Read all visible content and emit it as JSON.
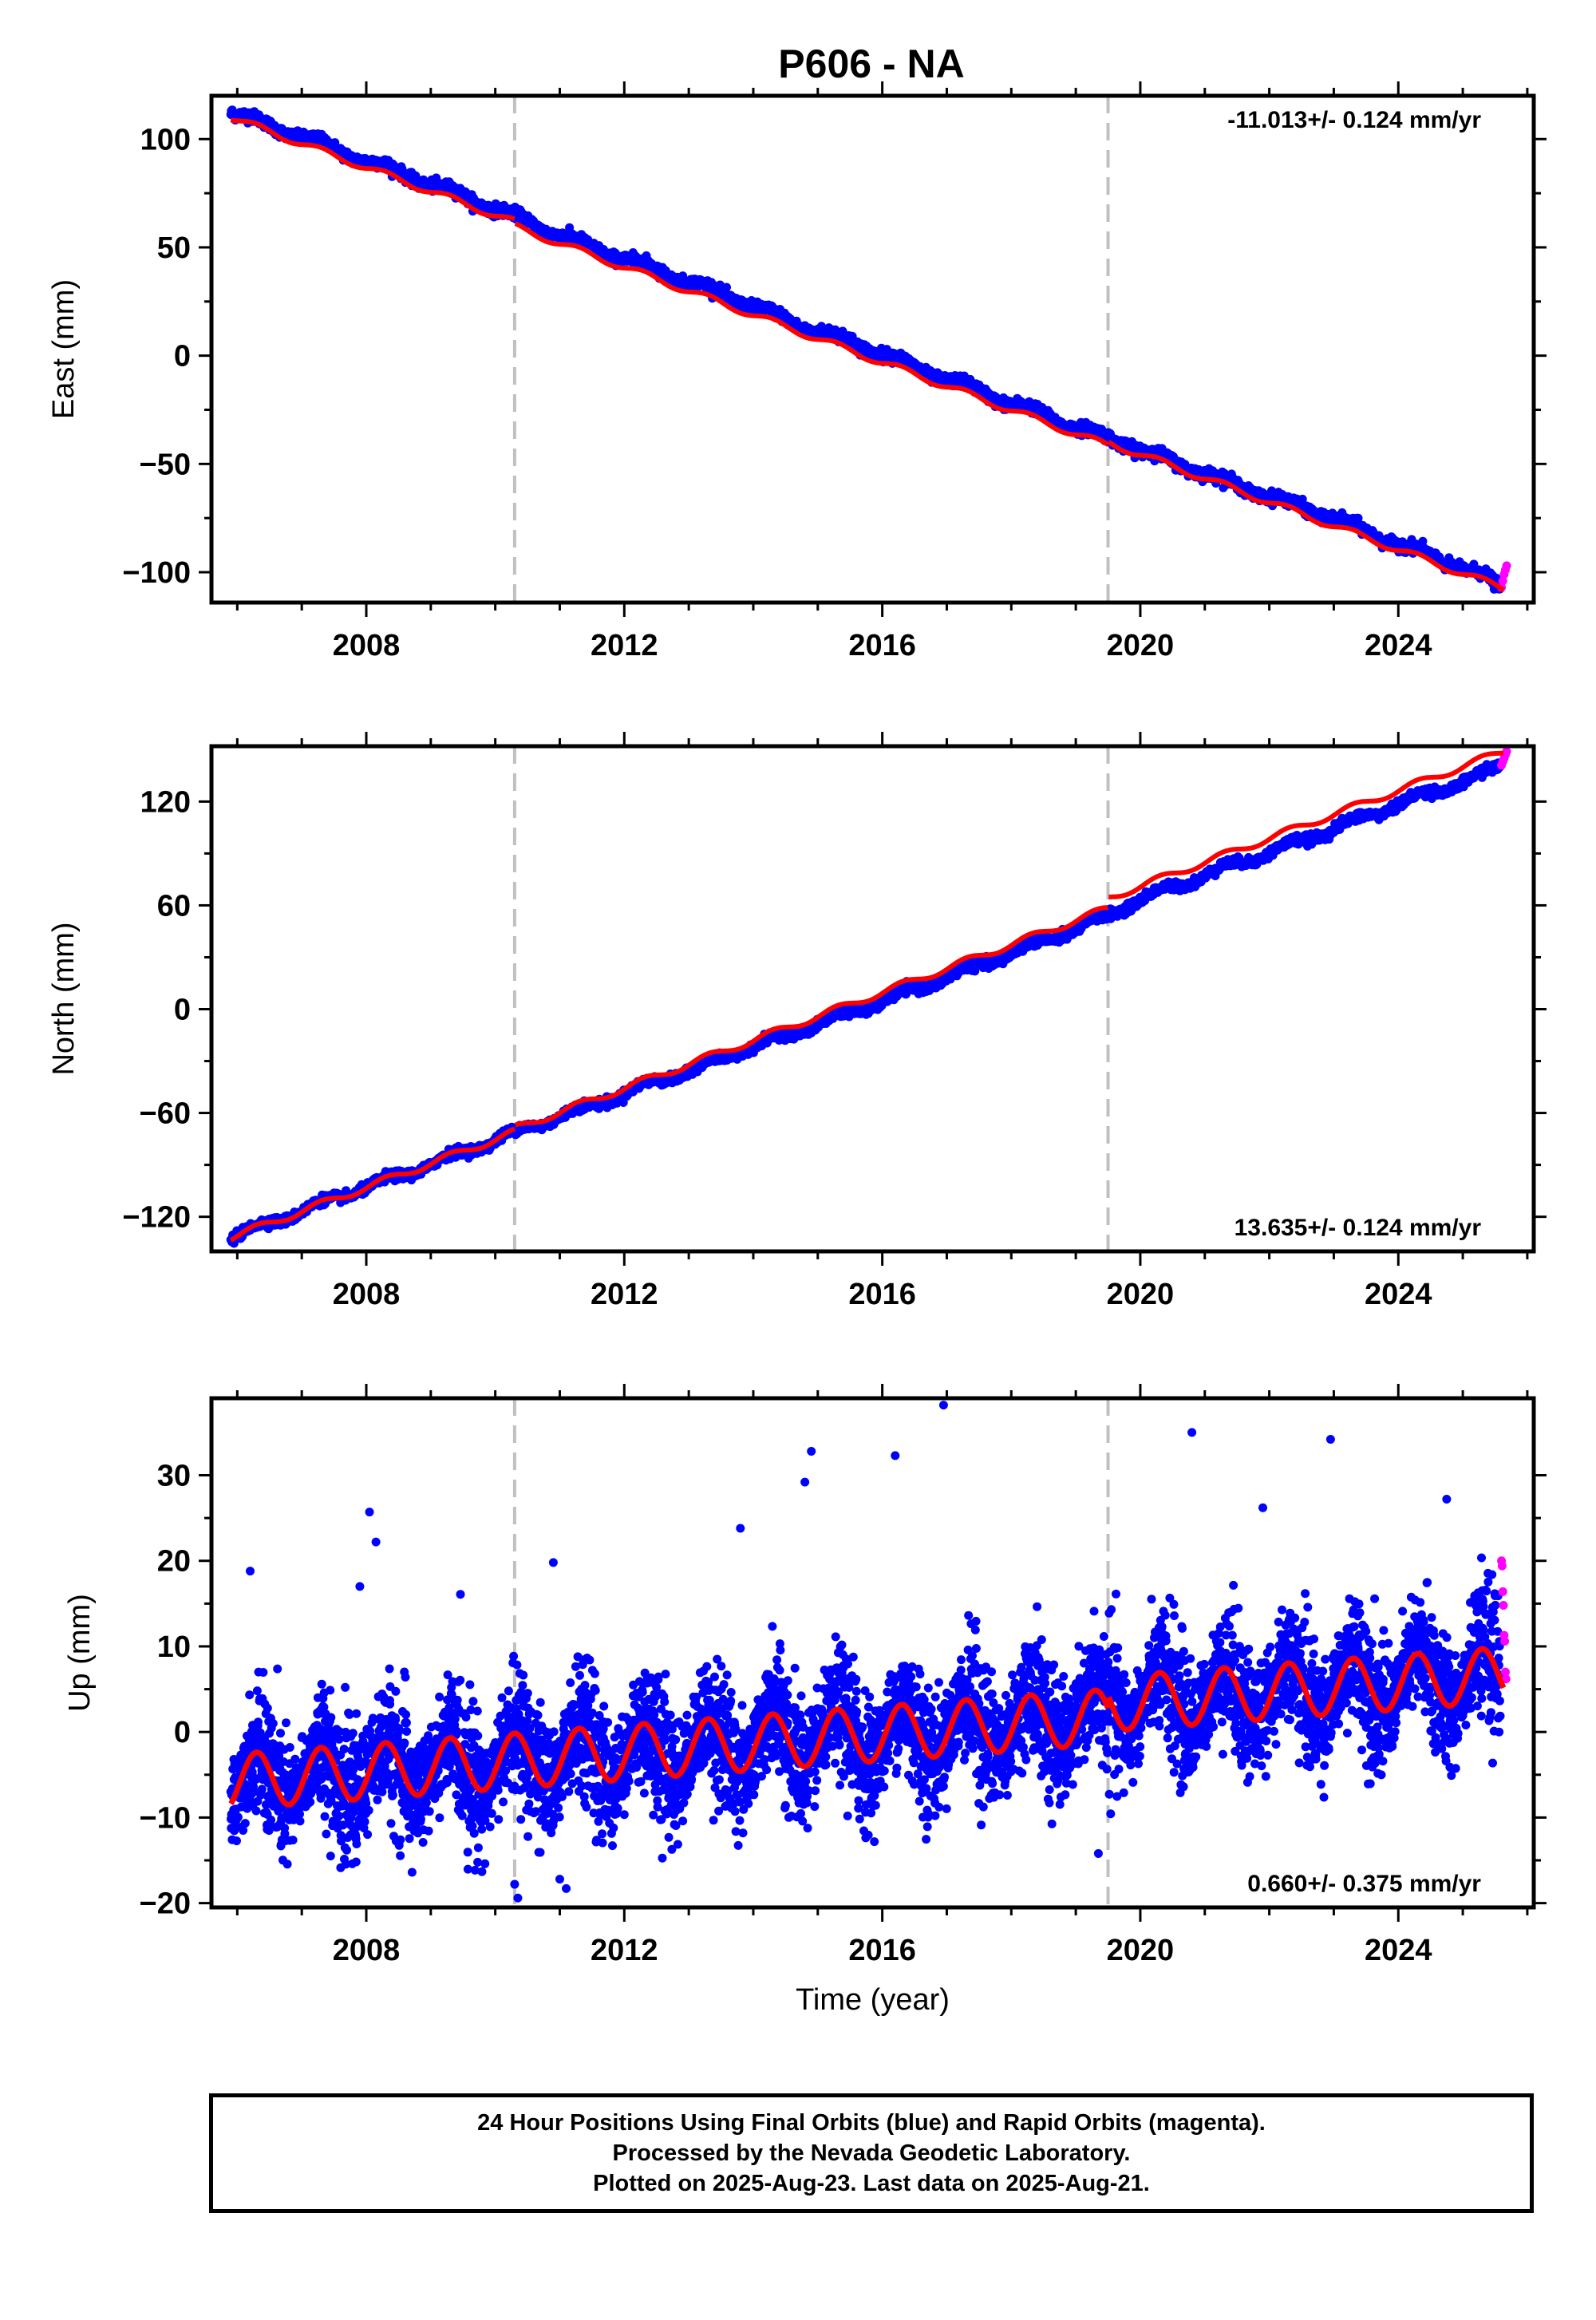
{
  "title": "P606 - NA",
  "colors": {
    "final_orbits": "#0000ff",
    "rapid_orbits": "#ff00ff",
    "model_fit": "#ff0000",
    "reference_lines": "#c0c0c0",
    "axis": "#000000"
  },
  "chart_data": [
    {
      "type": "scatter",
      "panel": "east",
      "title": "",
      "xlabel": "",
      "ylabel": "East (mm)",
      "xlim": [
        2005.6,
        2026.1
      ],
      "ylim": [
        -114,
        120
      ],
      "xticks": [
        2008,
        2012,
        2016,
        2020,
        2024
      ],
      "yticks": [
        -100,
        -50,
        0,
        50,
        100
      ],
      "rate_label": "-11.013+/- 0.124 mm/yr",
      "rate_label_position": "top-right",
      "grid": false,
      "reference_lines_x": [
        2010.3,
        2019.5
      ],
      "series": [
        {
          "kind": "final_orbits_daily_positions",
          "x": [
            2005.9,
            2006.4,
            2006.9,
            2007.4,
            2007.9,
            2008.4,
            2008.9,
            2009.4,
            2009.9,
            2010.4,
            2010.9,
            2011.4,
            2011.9,
            2012.4,
            2012.9,
            2013.4,
            2013.9,
            2014.4,
            2014.9,
            2015.4,
            2015.9,
            2016.4,
            2016.9,
            2017.4,
            2017.9,
            2018.4,
            2018.9,
            2019.4,
            2019.9,
            2020.4,
            2020.9,
            2021.4,
            2021.9,
            2022.4,
            2022.9,
            2023.4,
            2023.9,
            2024.4,
            2024.9,
            2025.4,
            2025.55
          ],
          "y": [
            113,
            107,
            102,
            97,
            91,
            86,
            80,
            75,
            69,
            63,
            57,
            51,
            46,
            41,
            35,
            30,
            24,
            18,
            12,
            8,
            2,
            -4,
            -10,
            -15,
            -21,
            -26,
            -32,
            -37,
            -42,
            -48,
            -53,
            -59,
            -64,
            -69,
            -74,
            -80,
            -86,
            -91,
            -97,
            -103,
            -107
          ]
        },
        {
          "kind": "rapid_orbits_daily_positions",
          "x": [
            2025.6,
            2025.62,
            2025.64,
            2025.66,
            2025.68
          ],
          "y": [
            -107,
            -104,
            -101,
            -99,
            -97
          ]
        },
        {
          "kind": "model_fit",
          "linear_rate_mm_per_yr": -11.013,
          "x_start": 2005.9,
          "x_end": 2025.63,
          "y_start": 110,
          "y_end": -107,
          "annual_amplitude_mm": 1.5,
          "offsets": [
            {
              "x": 2010.3,
              "dy": -2
            },
            {
              "x": 2019.5,
              "dy": 1.5
            }
          ]
        }
      ]
    },
    {
      "type": "scatter",
      "panel": "north",
      "title": "",
      "xlabel": "",
      "ylabel": "North (mm)",
      "xlim": [
        2005.6,
        2026.1
      ],
      "ylim": [
        -140,
        152
      ],
      "xticks": [
        2008,
        2012,
        2016,
        2020,
        2024
      ],
      "yticks": [
        -120,
        -60,
        0,
        60,
        120
      ],
      "rate_label": "13.635+/- 0.124 mm/yr",
      "rate_label_position": "bottom-right",
      "grid": false,
      "reference_lines_x": [
        2010.3,
        2019.5
      ],
      "series": [
        {
          "kind": "final_orbits_daily_positions",
          "x": [
            2005.9,
            2006.4,
            2006.9,
            2007.4,
            2007.9,
            2008.4,
            2008.9,
            2009.4,
            2009.9,
            2010.4,
            2010.9,
            2011.4,
            2011.9,
            2012.4,
            2012.9,
            2013.4,
            2013.9,
            2014.4,
            2014.9,
            2015.4,
            2015.9,
            2016.4,
            2016.9,
            2017.4,
            2017.9,
            2018.4,
            2018.9,
            2019.4,
            2019.9,
            2020.4,
            2020.9,
            2021.4,
            2021.9,
            2022.4,
            2022.9,
            2023.4,
            2023.9,
            2024.4,
            2024.9,
            2025.4,
            2025.55
          ],
          "y": [
            -132,
            -125,
            -118,
            -111,
            -104,
            -98,
            -91,
            -84,
            -77,
            -70,
            -63,
            -57,
            -50,
            -43,
            -37,
            -30,
            -23,
            -16,
            -10,
            -3,
            3,
            10,
            17,
            24,
            31,
            38,
            45,
            52,
            62,
            69,
            76,
            83,
            89,
            96,
            103,
            110,
            117,
            124,
            130,
            137,
            140
          ]
        },
        {
          "kind": "rapid_orbits_daily_positions",
          "x": [
            2025.6,
            2025.62,
            2025.64,
            2025.66,
            2025.68
          ],
          "y": [
            141,
            143,
            145,
            147,
            149
          ]
        },
        {
          "kind": "model_fit",
          "linear_rate_mm_per_yr": 13.635,
          "x_start": 2005.9,
          "x_end": 2025.63,
          "y_start": -132,
          "y_end": 141,
          "annual_amplitude_mm": 2,
          "offsets": [
            {
              "x": 2010.3,
              "dy": 2
            },
            {
              "x": 2019.5,
              "dy": 6
            }
          ]
        }
      ]
    },
    {
      "type": "scatter",
      "panel": "up",
      "title": "",
      "xlabel": "Time (year)",
      "ylabel": "Up (mm)",
      "xlim": [
        2005.6,
        2026.1
      ],
      "ylim": [
        -20.5,
        39
      ],
      "xticks": [
        2008,
        2012,
        2016,
        2020,
        2024
      ],
      "yticks": [
        -20,
        -10,
        0,
        10,
        20,
        30
      ],
      "rate_label": "0.660+/- 0.375 mm/yr",
      "rate_label_position": "bottom-right",
      "grid": false,
      "reference_lines_x": [
        2010.3,
        2019.5
      ],
      "series": [
        {
          "kind": "final_orbits_daily_positions",
          "scatter_std_mm": 4,
          "outliers": [
            {
              "x": 2006.2,
              "y": 18.8
            },
            {
              "x": 2007.9,
              "y": 17
            },
            {
              "x": 2008.05,
              "y": 25.7
            },
            {
              "x": 2008.15,
              "y": 22.2
            },
            {
              "x": 2010.9,
              "y": 19.8
            },
            {
              "x": 2013.8,
              "y": 23.8
            },
            {
              "x": 2014.8,
              "y": 29.2
            },
            {
              "x": 2014.9,
              "y": 32.8
            },
            {
              "x": 2016.2,
              "y": 32.3
            },
            {
              "x": 2016.95,
              "y": 38.2
            },
            {
              "x": 2020.8,
              "y": 35
            },
            {
              "x": 2021.9,
              "y": 26.2
            },
            {
              "x": 2022.95,
              "y": 34.2
            },
            {
              "x": 2024.75,
              "y": 27.2
            },
            {
              "x": 2010.35,
              "y": -19.4
            },
            {
              "x": 2010.3,
              "y": -17.8
            },
            {
              "x": 2011.0,
              "y": -17.2
            },
            {
              "x": 2011.1,
              "y": -18.3
            },
            {
              "x": 2019.35,
              "y": -14.2
            }
          ]
        },
        {
          "kind": "rapid_orbits_daily_positions",
          "x": [
            2025.6,
            2025.61,
            2025.62,
            2025.63,
            2025.64,
            2025.65,
            2025.66,
            2025.67
          ],
          "y": [
            20,
            19.4,
            16.4,
            14.8,
            11.3,
            10.6,
            7,
            6.2
          ]
        },
        {
          "kind": "model_fit",
          "linear_rate_mm_per_yr": 0.66,
          "x_start": 2005.9,
          "x_end": 2025.63,
          "annual_amplitude_mm": 3.2,
          "mean_at_start_mm": -5.8,
          "mean_at_end_mm": 5.2,
          "offsets": [
            {
              "x": 2019.5,
              "dy": 1.5
            }
          ]
        }
      ]
    }
  ],
  "caption": {
    "line1": "24 Hour Positions Using Final Orbits (blue) and Rapid Orbits (magenta).",
    "line2": "Processed by the Nevada Geodetic Laboratory.",
    "line3": "Plotted on 2025-Aug-23. Last data on 2025-Aug-21."
  }
}
